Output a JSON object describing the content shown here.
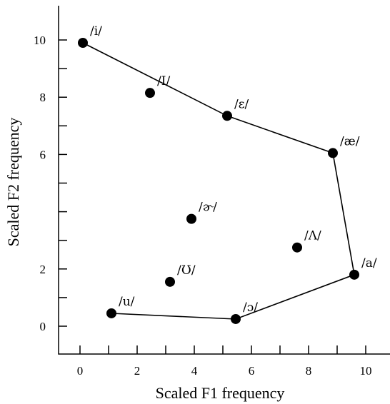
{
  "chart_data": {
    "type": "scatter",
    "xlabel": "Scaled F1 frequency",
    "ylabel": "Scaled F2 frequency",
    "xlim": [
      -0.7,
      10.9
    ],
    "ylim": [
      -1.0,
      11.2
    ],
    "x_ticks": [
      0,
      1,
      2,
      3,
      4,
      5,
      6,
      7,
      8,
      9,
      10
    ],
    "x_tick_labels": [
      "0",
      "",
      "2",
      "",
      "4",
      "",
      "6",
      "",
      "8",
      "",
      "10"
    ],
    "y_ticks": [
      0,
      1,
      2,
      3,
      4,
      5,
      6,
      7,
      8,
      9,
      10
    ],
    "y_tick_labels": [
      "0",
      "",
      "2",
      "",
      "",
      "",
      "6",
      "",
      "8",
      "",
      "10"
    ],
    "grid": false,
    "legend": "none",
    "points": [
      {
        "label": "/i/",
        "x": 0.1,
        "y": 9.9
      },
      {
        "label": "/I/",
        "x": 2.45,
        "y": 8.15
      },
      {
        "label": "/ɛ/",
        "x": 5.15,
        "y": 7.35
      },
      {
        "label": "/æ/",
        "x": 8.85,
        "y": 6.05
      },
      {
        "label": "/ɚ/",
        "x": 3.9,
        "y": 3.75
      },
      {
        "label": "/Λ/",
        "x": 7.6,
        "y": 2.75
      },
      {
        "label": "/a/",
        "x": 9.6,
        "y": 1.8
      },
      {
        "label": "/Ʊ/",
        "x": 3.15,
        "y": 1.55
      },
      {
        "label": "/u/",
        "x": 1.1,
        "y": 0.45
      },
      {
        "label": "/ɔ/",
        "x": 5.45,
        "y": 0.25
      }
    ],
    "connected_path": [
      "/i/",
      "/ɛ/",
      "/æ/",
      "/a/",
      "/ɔ/",
      "/u/"
    ]
  }
}
